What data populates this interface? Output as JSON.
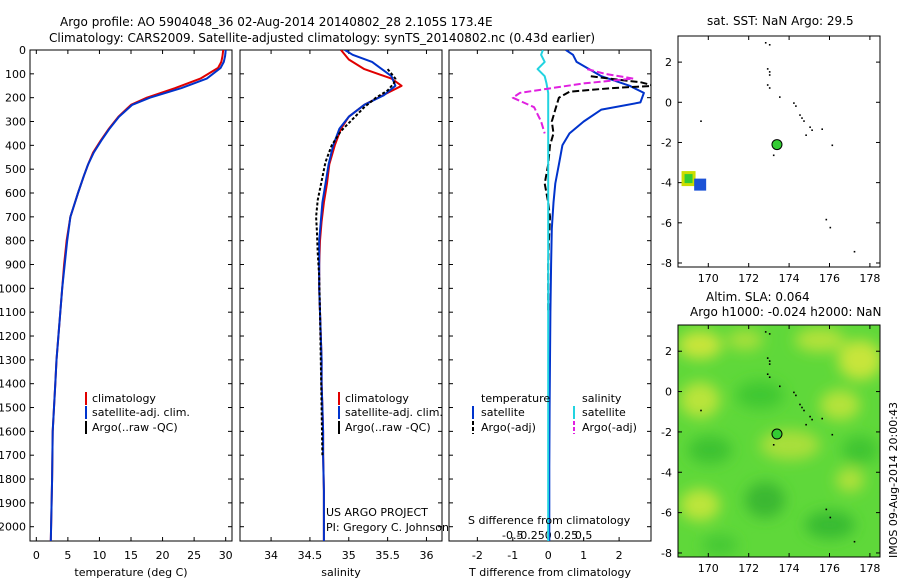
{
  "header": {
    "line1": "Argo profile: AO 5904048_36 02-Aug-2014 20140802_28 2.105S 173.4E",
    "line2": "Climatology: CARS2009. Satellite-adjusted climatology: synTS_20140802.nc (0.43d earlier)"
  },
  "credits": {
    "project": "US ARGO PROJECT",
    "pi": "PI: Gregory C. Johnson",
    "imos": "IMOS 09-Aug-2014 20:00:43"
  },
  "colors": {
    "climatology": "#e00000",
    "satellite": "#0033cc",
    "argo": "#000000",
    "sat_s": "#22d3e0",
    "argo_s": "#e020e0",
    "marker": "#33cc33"
  },
  "chart_data": [
    {
      "type": "line",
      "ylim": [
        2060,
        0
      ],
      "y_ticks": [
        0,
        100,
        200,
        300,
        400,
        500,
        600,
        700,
        800,
        900,
        1000,
        1100,
        1200,
        1300,
        1400,
        1500,
        1600,
        1700,
        1800,
        1900,
        2000
      ],
      "xlim": [
        -1,
        31
      ],
      "x_ticks": [
        0,
        5,
        10,
        15,
        20,
        25,
        30
      ],
      "xlabel": "temperature (deg C)",
      "legend": [
        "climatology",
        "satellite-adj. clim.",
        "Argo(..raw -QC)"
      ],
      "series": [
        {
          "name": "climatology",
          "color": "#e00000",
          "x": [
            29.6,
            29.5,
            29.3,
            28.8,
            26,
            22,
            17.5,
            15,
            13,
            11.5,
            10.2,
            9,
            8.2,
            7.5,
            6.6,
            6,
            5.4,
            4.8,
            4.4,
            4.1,
            3.8,
            3.5,
            3.2,
            3,
            2.8,
            2.6,
            2.5,
            2.3
          ],
          "y": [
            0,
            25,
            50,
            75,
            120,
            160,
            200,
            230,
            280,
            330,
            380,
            430,
            480,
            530,
            600,
            650,
            700,
            800,
            900,
            1000,
            1100,
            1200,
            1300,
            1400,
            1500,
            1600,
            1800,
            2060
          ]
        },
        {
          "name": "satellite-adj. clim.",
          "color": "#0033cc",
          "x": [
            30,
            29.9,
            29.7,
            29.2,
            27,
            23,
            18,
            15.2,
            13.1,
            11.6,
            10.3,
            9.1,
            8.2,
            7.5,
            6.6,
            6,
            5.4,
            4.9,
            4.5,
            4.1,
            3.8,
            3.5,
            3.2,
            3,
            2.8,
            2.6,
            2.5,
            2.3
          ],
          "y": [
            0,
            25,
            50,
            75,
            120,
            160,
            200,
            230,
            280,
            330,
            380,
            430,
            480,
            530,
            600,
            650,
            700,
            800,
            900,
            1000,
            1100,
            1200,
            1300,
            1400,
            1500,
            1600,
            1800,
            2060
          ]
        }
      ]
    },
    {
      "type": "line",
      "ylim": [
        2060,
        0
      ],
      "xlim": [
        33.6,
        36.2
      ],
      "x_ticks": [
        34,
        34.5,
        35,
        35.5,
        36
      ],
      "xlabel": "salinity",
      "legend": [
        "climatology",
        "satellite-adj. clim.",
        "Argo(..raw -QC)"
      ],
      "series": [
        {
          "name": "climatology",
          "color": "#e00000",
          "x": [
            34.9,
            35.0,
            35.2,
            35.55,
            35.68,
            35.5,
            35.2,
            35.0,
            34.9,
            34.82,
            34.75,
            34.72,
            34.68,
            34.65,
            34.63,
            34.62,
            34.62,
            34.63,
            34.64,
            34.65,
            34.65,
            34.66,
            34.67,
            34.67,
            34.68,
            34.68
          ],
          "y": [
            0,
            40,
            80,
            120,
            150,
            180,
            230,
            280,
            330,
            400,
            480,
            560,
            640,
            720,
            800,
            900,
            1000,
            1100,
            1200,
            1300,
            1400,
            1500,
            1600,
            1700,
            1850,
            2060
          ]
        },
        {
          "name": "satellite-adj. clim.",
          "color": "#0033cc",
          "x": [
            34.95,
            35.05,
            35.3,
            35.55,
            35.6,
            35.45,
            35.2,
            35.0,
            34.88,
            34.8,
            34.74,
            34.7,
            34.66,
            34.64,
            34.62,
            34.62,
            34.62,
            34.63,
            34.64,
            34.65,
            34.65,
            34.66,
            34.67,
            34.67,
            34.68,
            34.68
          ],
          "y": [
            0,
            20,
            50,
            110,
            150,
            190,
            230,
            280,
            330,
            400,
            480,
            560,
            640,
            720,
            800,
            900,
            1000,
            1100,
            1200,
            1300,
            1400,
            1500,
            1600,
            1700,
            1850,
            2060
          ]
        },
        {
          "name": "Argo(..raw -QC)",
          "color": "#000000",
          "x": [
            35.5,
            35.55,
            35.6,
            35.58,
            35.5,
            35.35,
            35.2,
            35.05,
            34.9,
            34.78,
            34.7,
            34.65,
            34.6,
            34.58,
            34.59,
            34.6,
            34.62,
            34.63,
            34.64,
            34.65,
            34.66
          ],
          "y": [
            80,
            100,
            120,
            140,
            170,
            200,
            240,
            290,
            340,
            400,
            470,
            550,
            630,
            700,
            760,
            850,
            950,
            1100,
            1300,
            1500,
            1700
          ]
        }
      ]
    },
    {
      "type": "line",
      "ylim": [
        2060,
        0
      ],
      "xlim": [
        -2.8,
        2.9
      ],
      "x_ticks": [
        -2,
        -1,
        0,
        1,
        2
      ],
      "xlabel": "T difference from climatology",
      "x2_ticks": [
        -0.5,
        -0.25,
        0,
        0.25,
        0.5
      ],
      "x2label": "S difference from climatology",
      "legend": [
        "temperature",
        "satellite",
        "Argo(-adj)",
        "salinity",
        "satellite",
        "Argo(-adj)"
      ],
      "series": [
        {
          "name": "T satellite",
          "color": "#0033cc",
          "x": [
            0.5,
            0.7,
            0.8,
            1.5,
            2.3,
            2.7,
            2.6,
            1.5,
            1.0,
            0.6,
            0.4,
            0.3,
            0.2,
            0.15,
            0.1,
            0.08,
            0.06,
            0.05,
            0.04,
            0.03,
            0.03
          ],
          "y": [
            0,
            20,
            50,
            110,
            150,
            180,
            220,
            250,
            300,
            350,
            400,
            480,
            560,
            640,
            750,
            900,
            1100,
            1300,
            1500,
            1750,
            2060
          ]
        },
        {
          "name": "T Argo(-adj)",
          "color": "#000000",
          "x": [
            1.2,
            2.0,
            2.6,
            3.0,
            1.8,
            0.6,
            0.3,
            0.2,
            0.1,
            0.15,
            0.05,
            0.0,
            -0.1,
            0.0,
            0.05,
            0.02,
            0.0,
            0.0
          ],
          "y": [
            110,
            125,
            135,
            150,
            160,
            175,
            200,
            250,
            300,
            350,
            400,
            480,
            560,
            640,
            700,
            800,
            900,
            1100
          ]
        },
        {
          "name": "S satellite",
          "color": "#22d3e0",
          "x": [
            -0.15,
            -0.2,
            -0.1,
            -0.3,
            -0.1,
            -0.05,
            0.0,
            0.0,
            0.0,
            0.0,
            0.0,
            0.0,
            0.0,
            0.0,
            0.0,
            0.0,
            0.0
          ],
          "y": [
            0,
            20,
            50,
            80,
            110,
            140,
            180,
            250,
            350,
            450,
            600,
            800,
            1000,
            1300,
            1600,
            1800,
            2060
          ]
        },
        {
          "name": "S Argo(-adj)",
          "color": "#e020e0",
          "x": [
            1.1,
            1.6,
            2.4,
            1.0,
            0.1,
            -0.8,
            -1.0,
            -0.4,
            -0.2,
            -0.1
          ],
          "y": [
            80,
            100,
            120,
            140,
            160,
            180,
            200,
            240,
            300,
            350
          ]
        }
      ]
    },
    {
      "type": "scatter",
      "title": "sat. SST: NaN Argo: 29.5",
      "xlim": [
        168.5,
        178.5
      ],
      "ylim": [
        -8.2,
        3.3
      ],
      "x_ticks": [
        170,
        172,
        174,
        176,
        178
      ],
      "y_ticks": [
        -8,
        -6,
        -4,
        -2,
        0,
        2
      ],
      "float_position": {
        "lon": 173.4,
        "lat": -2.105
      }
    },
    {
      "type": "heatmap",
      "title1": "Altim. SLA: 0.064",
      "title2": "Argo h1000: -0.024 h2000: NaN",
      "xlim": [
        168.5,
        178.5
      ],
      "ylim": [
        -8.2,
        3.3
      ],
      "x_ticks": [
        170,
        172,
        174,
        176,
        178
      ],
      "y_ticks": [
        -8,
        -6,
        -4,
        -2,
        0,
        2
      ],
      "float_position": {
        "lon": 173.4,
        "lat": -2.105
      }
    }
  ]
}
